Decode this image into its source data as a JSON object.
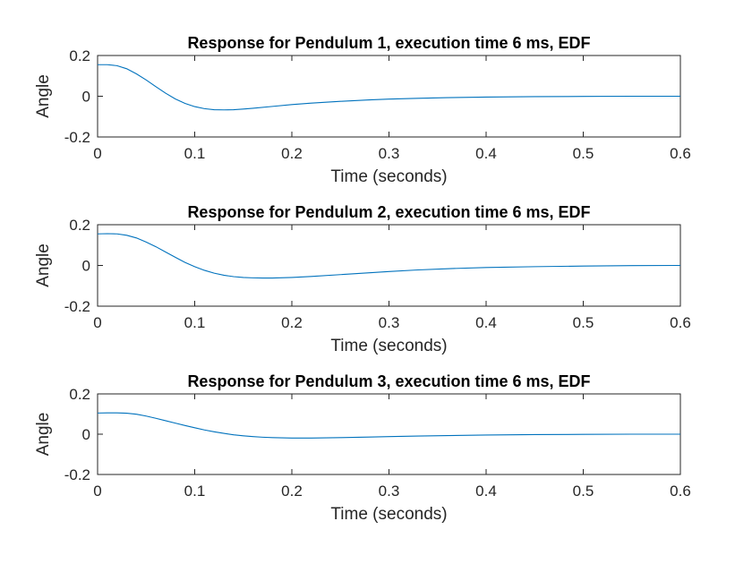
{
  "colors": {
    "series": "#0072BD",
    "axis": "#262626",
    "title": "#000000",
    "background": "#FFFFFF"
  },
  "chart_data": [
    {
      "type": "line",
      "title": "Response for Pendulum 1, execution time 6 ms, EDF",
      "xlabel": "Time (seconds)",
      "ylabel": "Angle",
      "xlim": [
        0,
        0.6
      ],
      "ylim": [
        -0.2,
        0.2
      ],
      "xticks": [
        0,
        0.1,
        0.2,
        0.3,
        0.4,
        0.5,
        0.6
      ],
      "xtick_labels": [
        "0",
        "0.1",
        "0.2",
        "0.3",
        "0.4",
        "0.5",
        "0.6"
      ],
      "yticks": [
        -0.2,
        0,
        0.2
      ],
      "ytick_labels": [
        "-0.2",
        "0",
        "0.2"
      ],
      "grid": false,
      "series": [
        {
          "x": [
            0,
            0.01,
            0.02,
            0.03,
            0.04,
            0.05,
            0.06,
            0.07,
            0.08,
            0.09,
            0.1,
            0.11,
            0.12,
            0.13,
            0.14,
            0.15,
            0.16,
            0.18,
            0.2,
            0.22,
            0.25,
            0.28,
            0.3,
            0.33,
            0.36,
            0.4,
            0.45,
            0.5,
            0.55,
            0.6
          ],
          "y": [
            0.155,
            0.155,
            0.15,
            0.135,
            0.11,
            0.08,
            0.047,
            0.015,
            -0.013,
            -0.035,
            -0.051,
            -0.061,
            -0.066,
            -0.067,
            -0.066,
            -0.063,
            -0.059,
            -0.05,
            -0.041,
            -0.034,
            -0.025,
            -0.018,
            -0.014,
            -0.01,
            -0.007,
            -0.004,
            -0.002,
            -0.001,
            0,
            0
          ]
        }
      ]
    },
    {
      "type": "line",
      "title": "Response for Pendulum 2, execution time 6 ms, EDF",
      "xlabel": "Time (seconds)",
      "ylabel": "Angle",
      "xlim": [
        0,
        0.6
      ],
      "ylim": [
        -0.2,
        0.2
      ],
      "xticks": [
        0,
        0.1,
        0.2,
        0.3,
        0.4,
        0.5,
        0.6
      ],
      "xtick_labels": [
        "0",
        "0.1",
        "0.2",
        "0.3",
        "0.4",
        "0.5",
        "0.6"
      ],
      "yticks": [
        -0.2,
        0,
        0.2
      ],
      "ytick_labels": [
        "-0.2",
        "0",
        "0.2"
      ],
      "grid": false,
      "series": [
        {
          "x": [
            0,
            0.01,
            0.02,
            0.03,
            0.04,
            0.05,
            0.06,
            0.07,
            0.08,
            0.09,
            0.1,
            0.11,
            0.12,
            0.13,
            0.14,
            0.15,
            0.16,
            0.17,
            0.18,
            0.2,
            0.22,
            0.25,
            0.28,
            0.3,
            0.33,
            0.36,
            0.4,
            0.45,
            0.5,
            0.55,
            0.6
          ],
          "y": [
            0.155,
            0.156,
            0.155,
            0.148,
            0.135,
            0.115,
            0.092,
            0.066,
            0.04,
            0.015,
            -0.006,
            -0.024,
            -0.038,
            -0.048,
            -0.055,
            -0.059,
            -0.061,
            -0.062,
            -0.062,
            -0.059,
            -0.054,
            -0.045,
            -0.036,
            -0.03,
            -0.022,
            -0.016,
            -0.01,
            -0.006,
            -0.003,
            -0.001,
            0
          ]
        }
      ]
    },
    {
      "type": "line",
      "title": "Response for Pendulum 3, execution time 6 ms, EDF",
      "xlabel": "Time (seconds)",
      "ylabel": "Angle",
      "xlim": [
        0,
        0.6
      ],
      "ylim": [
        -0.2,
        0.2
      ],
      "xticks": [
        0,
        0.1,
        0.2,
        0.3,
        0.4,
        0.5,
        0.6
      ],
      "xtick_labels": [
        "0",
        "0.1",
        "0.2",
        "0.3",
        "0.4",
        "0.5",
        "0.6"
      ],
      "yticks": [
        -0.2,
        0,
        0.2
      ],
      "ytick_labels": [
        "-0.2",
        "0",
        "0.2"
      ],
      "grid": false,
      "series": [
        {
          "x": [
            0,
            0.01,
            0.02,
            0.03,
            0.04,
            0.05,
            0.06,
            0.07,
            0.08,
            0.09,
            0.1,
            0.11,
            0.12,
            0.13,
            0.14,
            0.15,
            0.16,
            0.17,
            0.18,
            0.19,
            0.2,
            0.21,
            0.22,
            0.25,
            0.28,
            0.3,
            0.33,
            0.36,
            0.4,
            0.45,
            0.5,
            0.55,
            0.6
          ],
          "y": [
            0.105,
            0.106,
            0.106,
            0.104,
            0.099,
            0.09,
            0.079,
            0.067,
            0.055,
            0.043,
            0.032,
            0.021,
            0.012,
            0.004,
            -0.003,
            -0.008,
            -0.012,
            -0.015,
            -0.017,
            -0.018,
            -0.019,
            -0.019,
            -0.019,
            -0.017,
            -0.014,
            -0.012,
            -0.009,
            -0.007,
            -0.004,
            -0.002,
            -0.001,
            0,
            0
          ]
        }
      ]
    }
  ]
}
